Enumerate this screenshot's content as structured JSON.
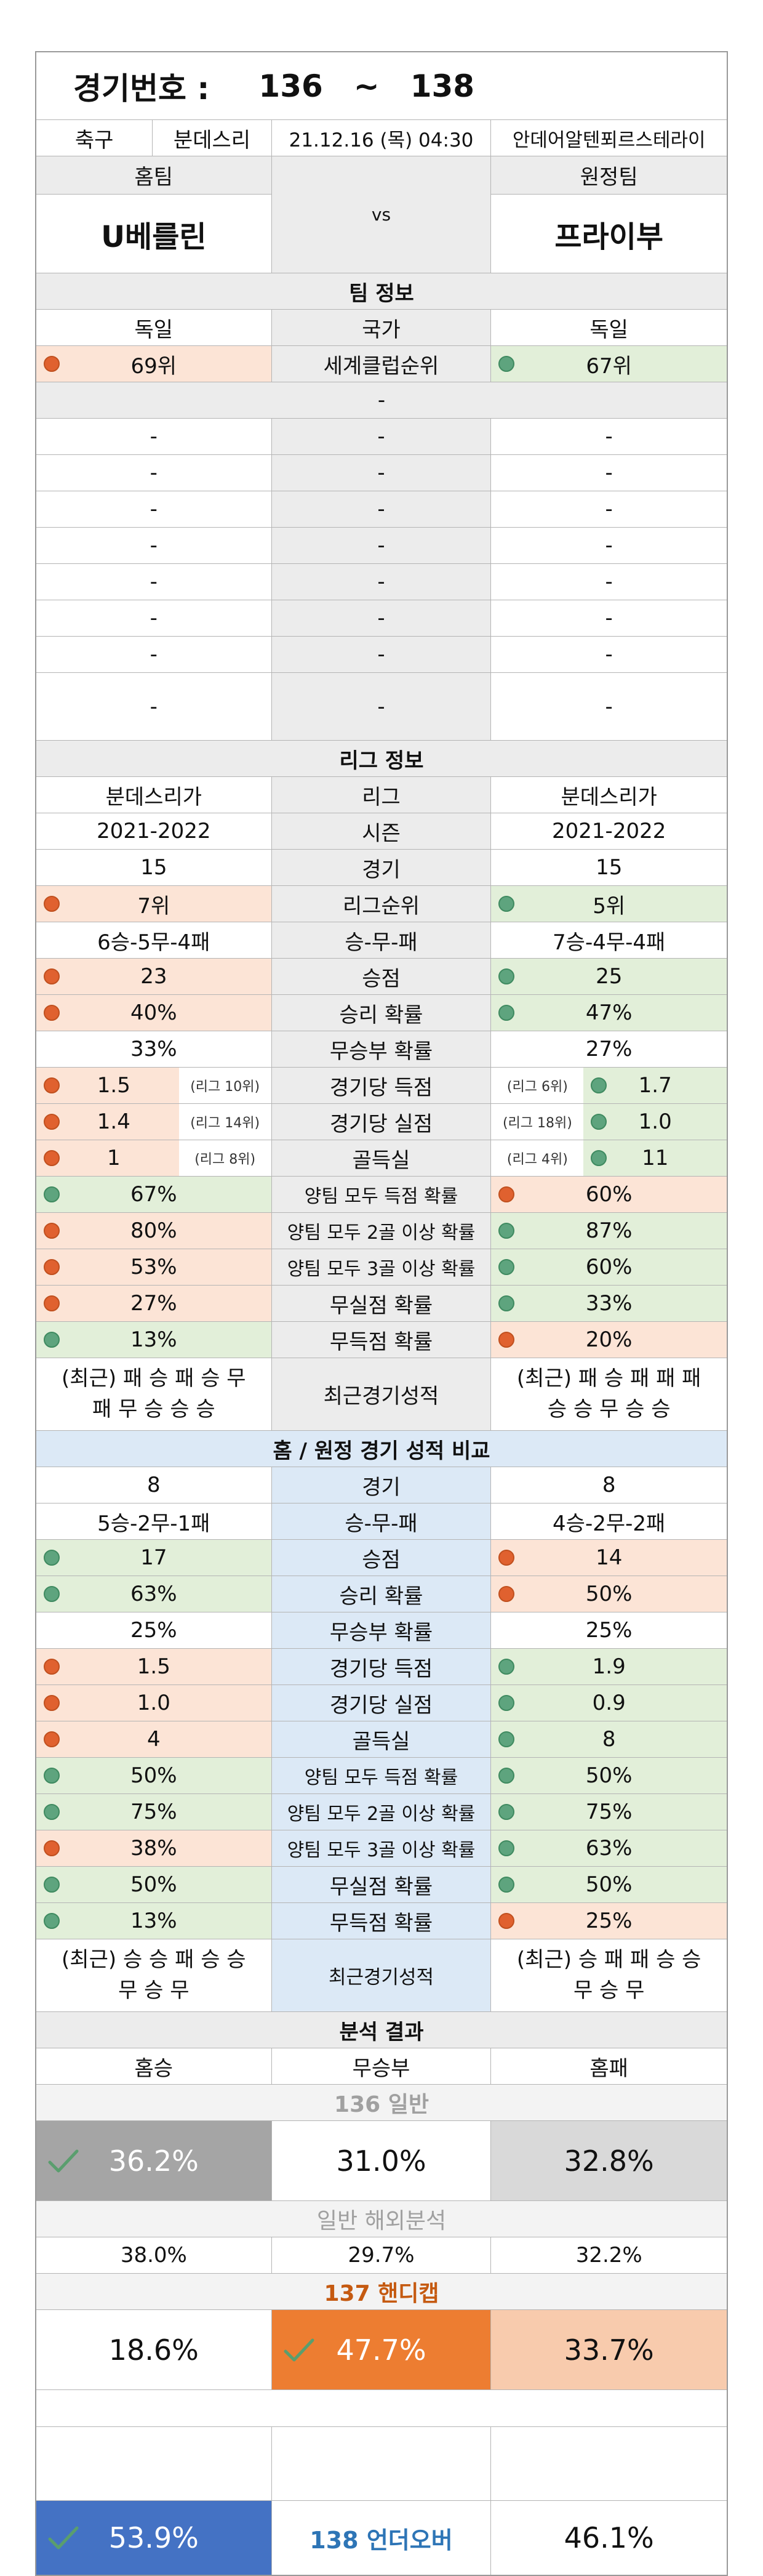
{
  "header": {
    "label": "경기번호 :",
    "start": "136",
    "tilde": "~",
    "end": "138"
  },
  "match": {
    "sport": "축구",
    "league": "분데스리",
    "datetime": "21.12.16 (목) 04:30",
    "venue": "안데어알텐푀르스테라이"
  },
  "teams": {
    "home_label": "홈팀",
    "away_label": "원정팀",
    "home": "U베를린",
    "vs": "vs",
    "away": "프라이부"
  },
  "team_info": {
    "title": "팀 정보",
    "nation": {
      "home": "독일",
      "label": "국가",
      "away": "독일"
    },
    "rank": {
      "home": "69위",
      "label": "세계클럽순위",
      "away": "67위"
    },
    "sub": "-",
    "dash_rows": 8,
    "dash": "-"
  },
  "league_info": {
    "title": "리그 정보",
    "rows": [
      {
        "home": "분데스리가",
        "label": "리그",
        "away": "분데스리가"
      },
      {
        "home": "2021-2022",
        "label": "시즌",
        "away": "2021-2022"
      },
      {
        "home": "15",
        "label": "경기",
        "away": "15"
      },
      {
        "home": "7위",
        "label": "리그순위",
        "away": "5위",
        "hc": "red",
        "ac": "grn"
      },
      {
        "home": "6승-5무-4패",
        "label": "승-무-패",
        "away": "7승-4무-4패"
      },
      {
        "home": "23",
        "label": "승점",
        "away": "25",
        "hc": "red",
        "ac": "grn"
      },
      {
        "home": "40%",
        "label": "승리 확률",
        "away": "47%",
        "hc": "red",
        "ac": "grn"
      },
      {
        "home": "33%",
        "label": "무승부 확률",
        "away": "27%"
      },
      {
        "home": "1.5",
        "hnote": "(리그 10위)",
        "label": "경기당 득점",
        "away": "1.7",
        "anote": "(리그 6위)",
        "hc": "red",
        "ac": "grn"
      },
      {
        "home": "1.4",
        "hnote": "(리그 14위)",
        "label": "경기당 실점",
        "away": "1.0",
        "anote": "(리그 18위)",
        "hc": "red",
        "ac": "grn"
      },
      {
        "home": "1",
        "hnote": "(리그 8위)",
        "label": "골득실",
        "away": "11",
        "anote": "(리그 4위)",
        "hc": "red",
        "ac": "grn"
      },
      {
        "home": "67%",
        "label": "양팀 모두 득점 확률",
        "away": "60%",
        "hc": "grn",
        "ac": "red"
      },
      {
        "home": "80%",
        "label": "양팀 모두 2골 이상 확률",
        "away": "87%",
        "hc": "red",
        "ac": "grn"
      },
      {
        "home": "53%",
        "label": "양팀 모두 3골 이상 확률",
        "away": "60%",
        "hc": "red",
        "ac": "grn"
      },
      {
        "home": "27%",
        "label": "무실점 확률",
        "away": "33%",
        "hc": "red",
        "ac": "grn"
      },
      {
        "home": "13%",
        "label": "무득점 확률",
        "away": "20%",
        "hc": "grn",
        "ac": "red"
      }
    ],
    "recent": {
      "home1": "(최근) 패 승 패 승 무",
      "home2": "패 무 승 승 승",
      "label": "최근경기성적",
      "away1": "(최근) 패 승 패 패 패",
      "away2": "승 승 무 승 승"
    }
  },
  "home_away": {
    "title": "홈 / 원정 경기 성적 비교",
    "rows": [
      {
        "home": "8",
        "label": "경기",
        "away": "8"
      },
      {
        "home": "5승-2무-1패",
        "label": "승-무-패",
        "away": "4승-2무-2패"
      },
      {
        "home": "17",
        "label": "승점",
        "away": "14",
        "hc": "grn",
        "ac": "red"
      },
      {
        "home": "63%",
        "label": "승리 확률",
        "away": "50%",
        "hc": "grn",
        "ac": "red"
      },
      {
        "home": "25%",
        "label": "무승부 확률",
        "away": "25%"
      },
      {
        "home": "1.5",
        "label": "경기당 득점",
        "away": "1.9",
        "hc": "red",
        "ac": "grn"
      },
      {
        "home": "1.0",
        "label": "경기당 실점",
        "away": "0.9",
        "hc": "red",
        "ac": "grn"
      },
      {
        "home": "4",
        "label": "골득실",
        "away": "8",
        "hc": "red",
        "ac": "grn"
      },
      {
        "home": "50%",
        "label": "양팀 모두 득점 확률",
        "away": "50%",
        "hc": "grn",
        "ac": "grn"
      },
      {
        "home": "75%",
        "label": "양팀 모두 2골 이상 확률",
        "away": "75%",
        "hc": "grn",
        "ac": "grn"
      },
      {
        "home": "38%",
        "label": "양팀 모두 3골 이상 확률",
        "away": "63%",
        "hc": "red",
        "ac": "grn"
      },
      {
        "home": "50%",
        "label": "무실점 확률",
        "away": "50%",
        "hc": "grn",
        "ac": "grn"
      },
      {
        "home": "13%",
        "label": "무득점 확률",
        "away": "25%",
        "hc": "grn",
        "ac": "red"
      }
    ],
    "recent": {
      "home1": "(최근) 승 승 패 승 승",
      "home2": "무 승 무",
      "label": "최근경기성적",
      "away1": "(최근) 승 패 패 승 승",
      "away2": "무 승 무"
    }
  },
  "analysis": {
    "title": "분석 결과",
    "cols": {
      "home": "홈승",
      "draw": "무승부",
      "away": "홈패"
    },
    "general": {
      "title": "136 일반",
      "home": "36.2%",
      "draw": "31.0%",
      "away": "32.8%"
    },
    "overseas": {
      "title": "일반 해외분석",
      "home": "38.0%",
      "draw": "29.7%",
      "away": "32.2%"
    },
    "handicap": {
      "title": "137 핸디캡",
      "home": "18.6%",
      "draw": "47.7%",
      "away": "33.7%"
    },
    "underover": {
      "over": "53.9%",
      "title": "138 언더오버",
      "under": "46.1%"
    }
  },
  "colors": {
    "red": "#fce4d6",
    "green": "#e2efd9",
    "blue_band": "#dce9f6",
    "gray_pick": "#a5a5a5",
    "orange_pick": "#ed7d31",
    "orange_light": "#f8cbad",
    "blue_pick": "#4472c4",
    "handicap_title": "#c55a11",
    "underover_title": "#2e75b6"
  }
}
